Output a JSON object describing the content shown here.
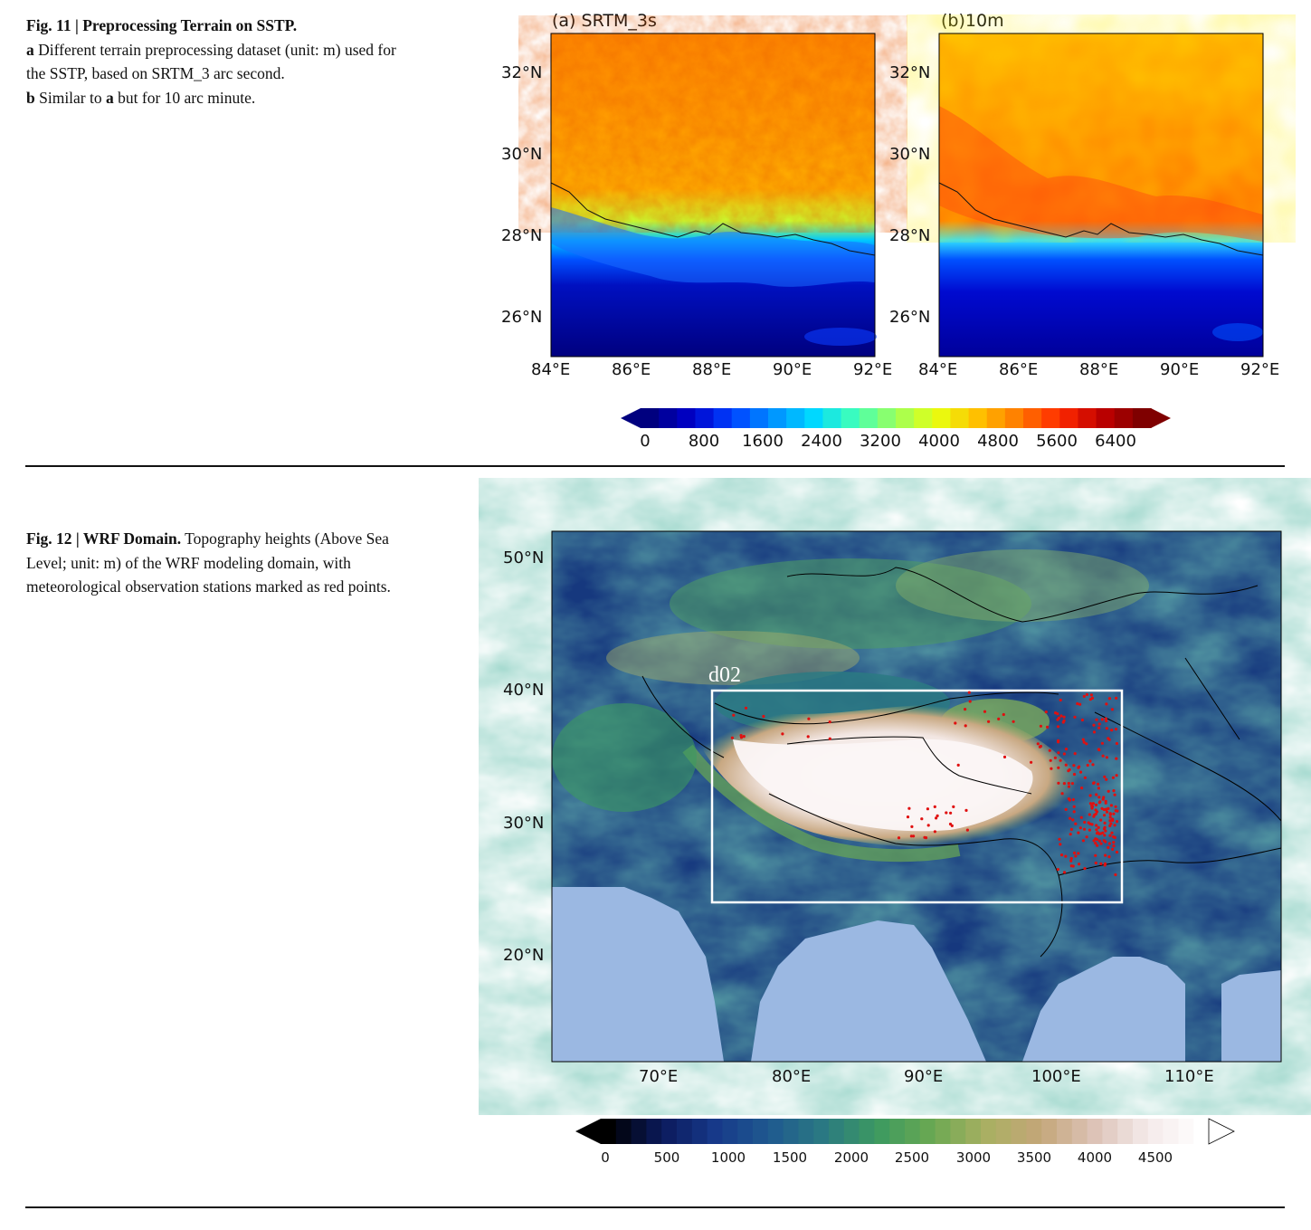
{
  "fig11": {
    "caption_title": "Fig. 11 | Preprocessing Terrain on SSTP.",
    "caption_a_letter": "a",
    "caption_a_text": " Different terrain preprocessing dataset (unit: m) used for the SSTP, based on SRTM_3 arc second.",
    "caption_b_letter": "b",
    "caption_b_text1": " Similar to ",
    "caption_b_bold": "a",
    "caption_b_text2": " but for 10 arc minute.",
    "panel_a_title": "(a) SRTM_3s",
    "panel_b_title": "(b)10m",
    "lat_labels": [
      "32°N",
      "30°N",
      "28°N",
      "26°N"
    ],
    "lon_labels": [
      "84°E",
      "86°E",
      "88°E",
      "90°E",
      "92°E"
    ],
    "colorbar_labels": [
      "0",
      "800",
      "1600",
      "2400",
      "3200",
      "4000",
      "4800",
      "5600",
      "6400"
    ],
    "colormap": [
      "#00007f",
      "#0000c8",
      "#0040ff",
      "#0090ff",
      "#00d8ff",
      "#40ffb8",
      "#9cff5c",
      "#e8ff10",
      "#ffc000",
      "#ff7a00",
      "#ff2a00",
      "#c00000",
      "#7f0000"
    ]
  },
  "fig12": {
    "caption_title": "Fig. 12 | WRF Domain.",
    "caption_text": " Topography heights (Above Sea Level; unit: m) of the WRF modeling domain, with meteorological observation stations marked as red points.",
    "domain_label": "d02",
    "lat_labels": [
      "50°N",
      "40°N",
      "30°N",
      "20°N"
    ],
    "lon_labels": [
      "70°E",
      "80°E",
      "90°E",
      "100°E",
      "110°E"
    ],
    "colorbar_labels": [
      "0",
      "500",
      "1000",
      "1500",
      "2000",
      "2500",
      "3000",
      "3500",
      "4000",
      "4500"
    ],
    "colormap": [
      "#000000",
      "#0b1a5c",
      "#173a8a",
      "#1f5a8f",
      "#2b7a82",
      "#3c9a60",
      "#6aa852",
      "#a9b062",
      "#c4a678",
      "#dcc2b6",
      "#f4eaea",
      "#ffffff"
    ],
    "ocean_color": "#9bb8e2",
    "station_color": "#e01010"
  }
}
